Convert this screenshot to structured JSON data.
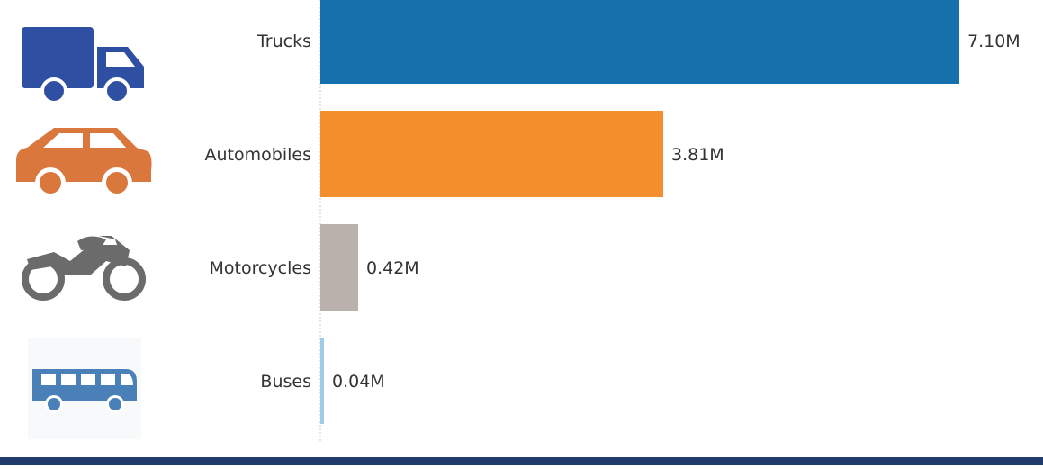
{
  "chart_data": {
    "type": "bar",
    "orientation": "horizontal",
    "categories": [
      "Trucks",
      "Automobiles",
      "Motorcycles",
      "Buses"
    ],
    "values": [
      7.1,
      3.81,
      0.42,
      0.04
    ],
    "value_labels": [
      "7.10M",
      "3.81M",
      "0.42M",
      "0.04M"
    ],
    "unit": "M",
    "title": "",
    "xlabel": "",
    "ylabel": "",
    "xlim": [
      0,
      7.45
    ],
    "grid": false,
    "legend": "none",
    "colors": [
      "#1570ab",
      "#f28e2b",
      "#bab0ac",
      "#a0cbe8"
    ],
    "icons": [
      "truck-icon",
      "automobile-icon",
      "motorcycle-icon",
      "bus-icon"
    ]
  },
  "theme": {
    "bottom_bar_color": "#1f3a6b",
    "icon_colors": [
      "#2f4fa3",
      "#d9773d",
      "#6b6b6b",
      "#4a80b8"
    ]
  }
}
